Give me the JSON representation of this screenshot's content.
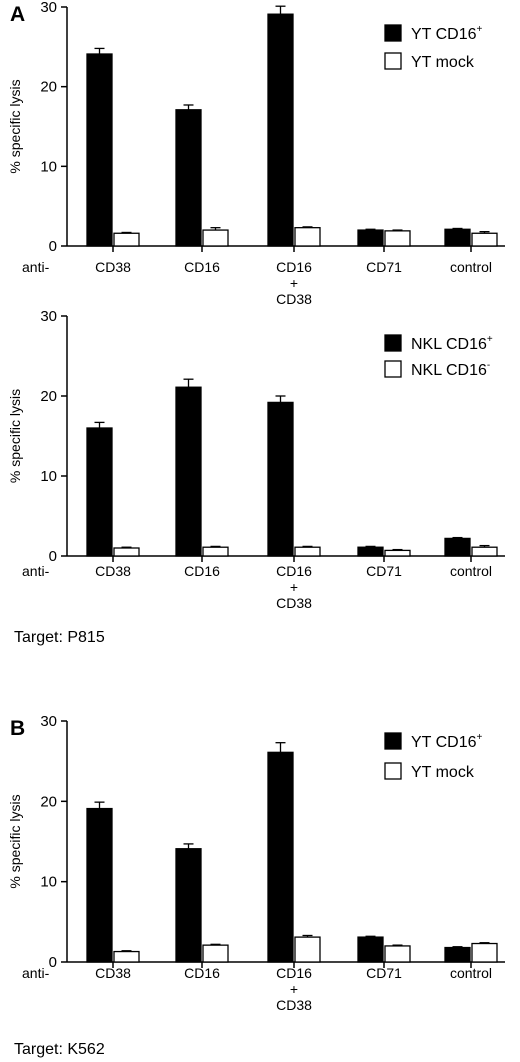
{
  "chart_data": [
    {
      "type": "bar",
      "panel_letter": "A",
      "categories": [
        "CD38",
        "CD16",
        "CD16 + CD38",
        "CD71",
        "control"
      ],
      "category_lines": [
        [
          "CD38"
        ],
        [
          "CD16"
        ],
        [
          "CD16",
          "+",
          "CD38"
        ],
        [
          "CD71"
        ],
        [
          "control"
        ]
      ],
      "category_prefix": "anti-",
      "ylabel": "% specific lysis",
      "ylim": [
        0,
        30
      ],
      "yticks": [
        0,
        10,
        20,
        30
      ],
      "legend_placement": "top-right",
      "series": [
        {
          "name": "YT CD16",
          "name_sup": "+",
          "fill": "#000000",
          "values": [
            24.1,
            17.1,
            29.1,
            2.0,
            2.1
          ],
          "errors": [
            0.7,
            0.6,
            1.0,
            0.1,
            0.1
          ]
        },
        {
          "name": "YT mock",
          "name_sup": "",
          "fill": "#ffffff",
          "values": [
            1.6,
            2.0,
            2.3,
            1.9,
            1.6
          ],
          "errors": [
            0.1,
            0.3,
            0.1,
            0.1,
            0.2
          ]
        }
      ],
      "footer": ""
    },
    {
      "type": "bar",
      "panel_letter": "",
      "categories": [
        "CD38",
        "CD16",
        "CD16 + CD38",
        "CD71",
        "control"
      ],
      "category_lines": [
        [
          "CD38"
        ],
        [
          "CD16"
        ],
        [
          "CD16",
          "+",
          "CD38"
        ],
        [
          "CD71"
        ],
        [
          "control"
        ]
      ],
      "category_prefix": "anti-",
      "ylabel": "% specific lysis",
      "ylim": [
        0,
        30
      ],
      "yticks": [
        0,
        10,
        20,
        30
      ],
      "legend_placement": "top-right",
      "series": [
        {
          "name": "NKL CD16",
          "name_sup": "+",
          "fill": "#000000",
          "values": [
            16.0,
            21.1,
            19.2,
            1.1,
            2.2
          ],
          "errors": [
            0.7,
            1.0,
            0.8,
            0.1,
            0.1
          ]
        },
        {
          "name": "NKL CD16",
          "name_sup": "-",
          "fill": "#ffffff",
          "values": [
            1.0,
            1.1,
            1.1,
            0.7,
            1.1
          ],
          "errors": [
            0.1,
            0.1,
            0.1,
            0.1,
            0.2
          ]
        }
      ],
      "footer": "Target: P815"
    },
    {
      "type": "bar",
      "panel_letter": "B",
      "categories": [
        "CD38",
        "CD16",
        "CD16 + CD38",
        "CD71",
        "control"
      ],
      "category_lines": [
        [
          "CD38"
        ],
        [
          "CD16"
        ],
        [
          "CD16",
          "+",
          "CD38"
        ],
        [
          "CD71"
        ],
        [
          "control"
        ]
      ],
      "category_prefix": "anti-",
      "ylabel": "% specific lysis",
      "ylim": [
        0,
        30
      ],
      "yticks": [
        0,
        10,
        20,
        30
      ],
      "legend_placement": "top-right",
      "series": [
        {
          "name": "YT CD16",
          "name_sup": "+",
          "fill": "#000000",
          "values": [
            19.1,
            14.1,
            26.1,
            3.1,
            1.8
          ],
          "errors": [
            0.8,
            0.6,
            1.2,
            0.1,
            0.1
          ]
        },
        {
          "name": "YT mock",
          "name_sup": "",
          "fill": "#ffffff",
          "values": [
            1.3,
            2.1,
            3.1,
            2.0,
            2.3
          ],
          "errors": [
            0.1,
            0.1,
            0.2,
            0.1,
            0.1
          ]
        }
      ],
      "footer": "Target: K562"
    }
  ]
}
